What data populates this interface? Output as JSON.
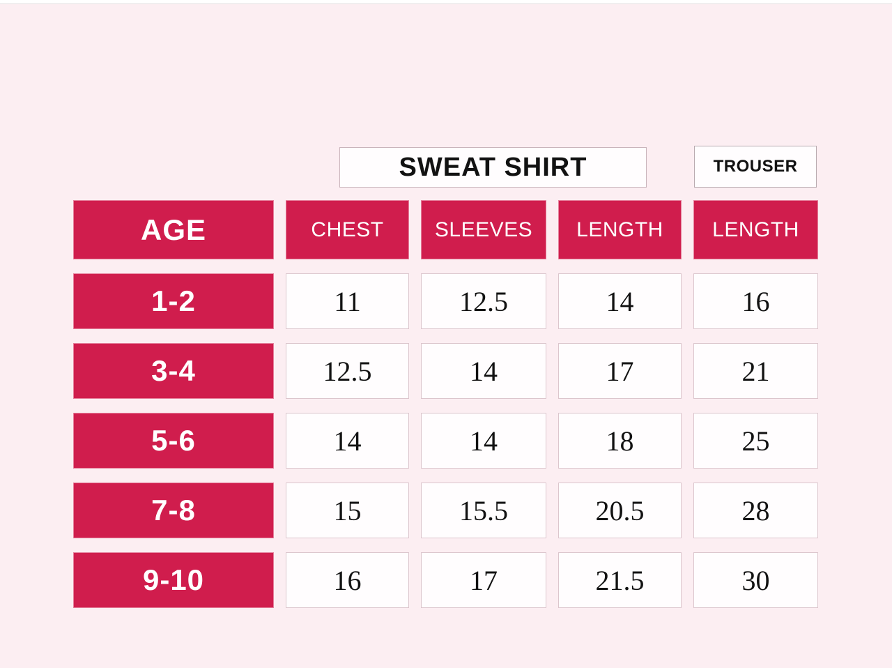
{
  "colors": {
    "accent": "#d01d4d",
    "bg": "#fceef2"
  },
  "titles": {
    "sweatshirt": "SWEAT SHIRT",
    "trouser": "TROUSER"
  },
  "table": {
    "age_header": "AGE",
    "columns": [
      "CHEST",
      "SLEEVES",
      "LENGTH",
      "LENGTH"
    ],
    "rows": [
      {
        "age": "1-2",
        "values": [
          "11",
          "12.5",
          "14",
          "16"
        ]
      },
      {
        "age": "3-4",
        "values": [
          "12.5",
          "14",
          "17",
          "21"
        ]
      },
      {
        "age": "5-6",
        "values": [
          "14",
          "14",
          "18",
          "25"
        ]
      },
      {
        "age": "7-8",
        "values": [
          "15",
          "15.5",
          "20.5",
          "28"
        ]
      },
      {
        "age": "9-10",
        "values": [
          "16",
          "17",
          "21.5",
          "30"
        ]
      }
    ]
  },
  "chart_data": {
    "type": "table",
    "title": "SWEAT SHIRT / TROUSER size chart by age",
    "columns": [
      "AGE",
      "SWEAT SHIRT CHEST",
      "SWEAT SHIRT SLEEVES",
      "SWEAT SHIRT LENGTH",
      "TROUSER LENGTH"
    ],
    "rows": [
      [
        "1-2",
        11,
        12.5,
        14,
        16
      ],
      [
        "3-4",
        12.5,
        14,
        17,
        21
      ],
      [
        "5-6",
        14,
        14,
        18,
        25
      ],
      [
        "7-8",
        15,
        15.5,
        20.5,
        28
      ],
      [
        "9-10",
        16,
        17,
        21.5,
        30
      ]
    ]
  }
}
